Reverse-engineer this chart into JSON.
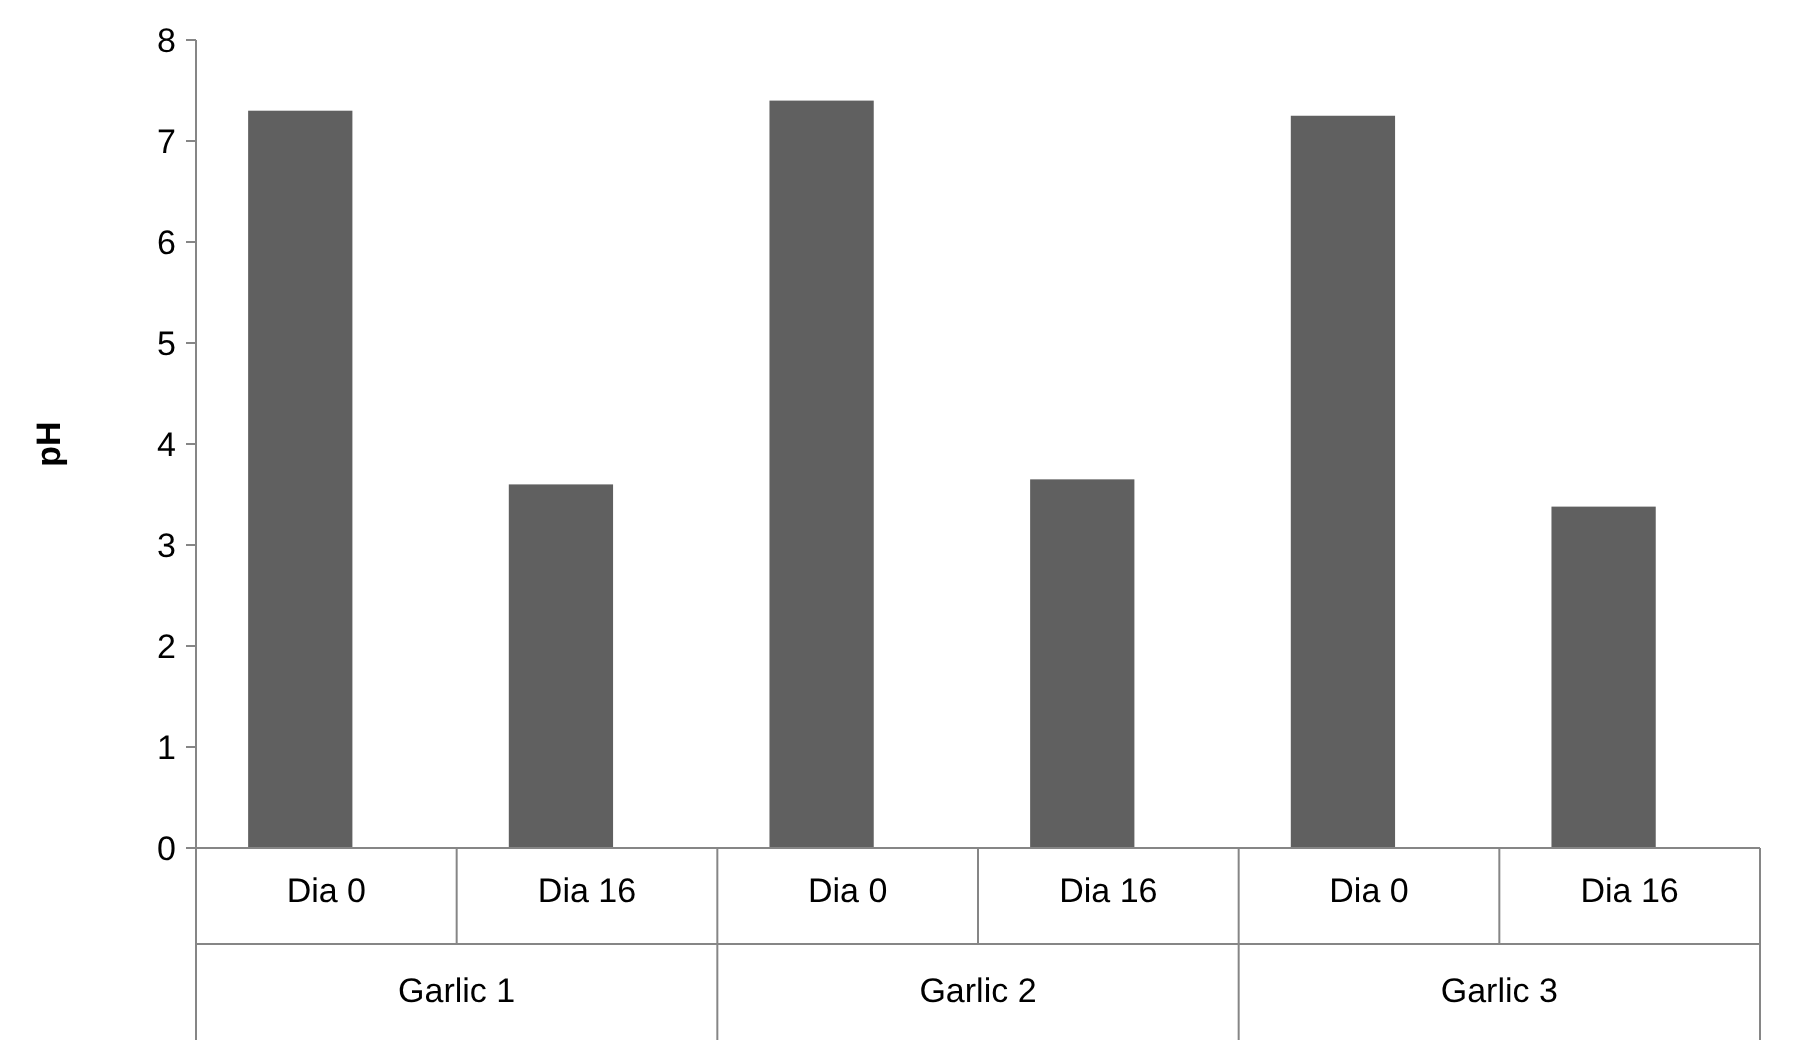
{
  "chart_data": {
    "type": "bar",
    "ylabel": "pH",
    "categories": [
      "Dia 0",
      "Dia 16",
      "Dia 0",
      "Dia 16",
      "Dia 0",
      "Dia 16"
    ],
    "values": [
      7.3,
      3.6,
      7.4,
      3.65,
      7.25,
      3.38
    ],
    "color": "#606060",
    "ylim": [
      0,
      8
    ],
    "yticks": [
      0,
      1,
      2,
      3,
      4,
      5,
      6,
      7,
      8
    ],
    "annotations": [
      "Garlic 1",
      "Garlic 2",
      "Garlic 3"
    ],
    "grid": false
  }
}
